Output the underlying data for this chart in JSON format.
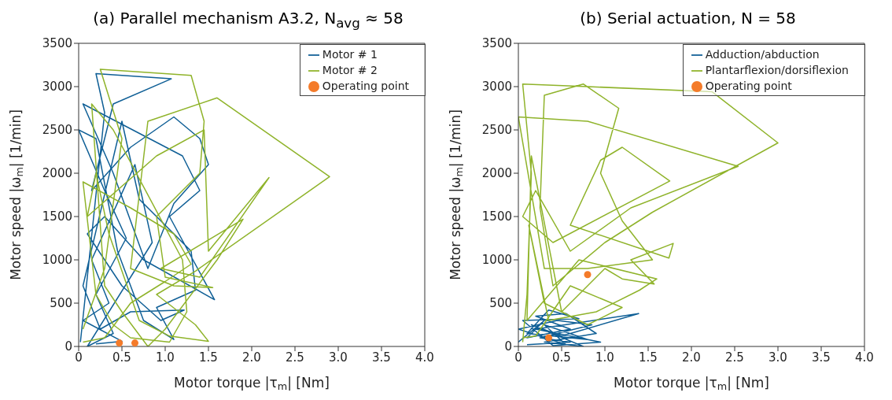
{
  "chart_data": [
    {
      "type": "line",
      "title": "(a) Parallel mechanism A3.2, N$_{avg}$ ≈ 58",
      "xlabel": "Motor torque |τ$_{m}$| [Nm]",
      "ylabel": "Motor speed |ω$_{m}$| [1/min]",
      "xlim": [
        0,
        4
      ],
      "ylim": [
        0,
        3500
      ],
      "xticks": [
        0,
        0.5,
        {
          "value": 1,
          "label": "1.0"
        },
        1.5,
        {
          "value": 2,
          "label": "2.0"
        },
        2.5,
        {
          "value": 3,
          "label": "3.0"
        },
        3.5,
        {
          "value": 4,
          "label": "4.0"
        }
      ],
      "yticks": [
        0,
        500,
        1000,
        1500,
        2000,
        2500,
        3000,
        3500
      ],
      "legend": "top right",
      "series": [
        {
          "name": "Motor # 1",
          "color": "#0f5f96",
          "x": [
            0.02,
            0.1,
            0.3,
            0.2,
            1.07,
            0.4,
            0.15,
            0.6,
            1.1,
            1.4,
            1.5,
            1.1,
            0.8,
            0.4,
            0.05,
            1.2,
            1.4,
            1.05,
            1.57,
            0.75,
            0.3,
            0.1,
            0.5,
            0.95,
            1.22,
            0.6,
            0.25,
            0.05,
            0.5,
            0.7,
            1.3,
            1.35,
            0.9,
            1.1,
            0.75,
            0.45,
            0.2,
            0,
            0.3,
            0.55,
            0.2,
            0.4,
            0.1,
            0.85,
            0.65,
            0.15,
            0.35,
            0.05,
            0.5,
            0.2
          ],
          "values": [
            50,
            800,
            2700,
            3150,
            3090,
            2800,
            1800,
            2300,
            2650,
            2400,
            2100,
            1650,
            900,
            2000,
            2800,
            2200,
            1800,
            1500,
            540,
            1000,
            1500,
            1300,
            700,
            300,
            420,
            400,
            200,
            700,
            2600,
            1700,
            1100,
            650,
            450,
            80,
            300,
            1100,
            2400,
            2500,
            1800,
            1250,
            600,
            150,
            0,
            1200,
            2100,
            1000,
            500,
            300,
            60,
            30
          ]
        },
        {
          "name": "Motor # 2",
          "color": "#8fb32a",
          "x": [
            0.05,
            0.3,
            0.5,
            0.25,
            1.3,
            1.45,
            1.4,
            0.9,
            1,
            1.55,
            1.1,
            0.6,
            0.8,
            1.6,
            2.9,
            1.35,
            0.9,
            1.35,
            1.5,
            1.05,
            0.7,
            0.35,
            0.2,
            0.1,
            0.9,
            1.45,
            1.5,
            2.2,
            1.4,
            0.95,
            1.9,
            1.6,
            1,
            0.8,
            0.5,
            0.3,
            0.15,
            0.4,
            1.2,
            1.25,
            1.05,
            0.6,
            0.4,
            0.2,
            0.05,
            0.6,
            1.1,
            1.3,
            1,
            0.6,
            0.3,
            0.05
          ],
          "values": [
            200,
            900,
            2400,
            3200,
            3130,
            2600,
            2000,
            1500,
            800,
            680,
            700,
            900,
            2600,
            2870,
            1960,
            870,
            600,
            250,
            60,
            120,
            300,
            1300,
            2000,
            1500,
            2200,
            2500,
            1100,
            1950,
            800,
            900,
            1470,
            1000,
            200,
            0,
            400,
            700,
            2800,
            2500,
            1000,
            400,
            50,
            100,
            250,
            600,
            1900,
            1600,
            1300,
            950,
            750,
            500,
            100,
            50
          ]
        },
        {
          "name": "Operating point",
          "type": "scatter",
          "marker": "circle",
          "color": "#f47b2a",
          "x": [
            0.47,
            0.65
          ],
          "values": [
            40,
            40
          ]
        }
      ]
    },
    {
      "type": "line",
      "title": "(b) Serial actuation, N = 58",
      "xlabel": "Motor torque |τ$_{m}$| [Nm]",
      "ylabel": "Motor speed |ω$_{m}$| [1/min]",
      "xlim": [
        0,
        4
      ],
      "ylim": [
        0,
        3500
      ],
      "xticks": [
        0,
        0.5,
        {
          "value": 1,
          "label": "1.0"
        },
        1.5,
        {
          "value": 2,
          "label": "2.0"
        },
        2.5,
        {
          "value": 3,
          "label": "3.0"
        },
        3.5,
        {
          "value": 4,
          "label": "4.0"
        }
      ],
      "yticks": [
        0,
        500,
        1000,
        1500,
        2000,
        2500,
        3000,
        3500
      ],
      "legend": "top right",
      "series": [
        {
          "name": "Adduction/abduction",
          "color": "#0f5f96",
          "x": [
            0,
            0.3,
            0.1,
            0.6,
            0.2,
            0.55,
            0.9,
            0.3,
            0.75,
            0.15,
            0.5,
            1.39,
            0.6,
            0.2,
            0.95,
            0.4,
            0.05,
            0.7,
            0.35,
            0.1,
            0.8,
            0.3,
            0.55,
            0,
            0.45,
            0.85,
            0.25,
            0.6,
            0.1
          ],
          "values": [
            50,
            300,
            100,
            200,
            350,
            380,
            150,
            50,
            0,
            250,
            120,
            380,
            260,
            200,
            50,
            10,
            300,
            320,
            420,
            150,
            80,
            250,
            20,
            200,
            300,
            250,
            100,
            50,
            20
          ]
        },
        {
          "name": "Plantarflexion/dorsiflexion",
          "color": "#8fb32a",
          "x": [
            0.05,
            0.1,
            0.15,
            0.05,
            0.8,
            2.24,
            3,
            1.55,
            1,
            0.4,
            0.25,
            0.3,
            0.75,
            1.16,
            0.95,
            1.2,
            1.55,
            0.8,
            0.3,
            0,
            0.8,
            2.54,
            1.3,
            0.6,
            0.2,
            0.05,
            0.4,
            1.75,
            1.2,
            0.95,
            0.6,
            1.74,
            1.79,
            1.3,
            1.57,
            1.2,
            1,
            0.5,
            0.15,
            0.1,
            0.7,
            1.6,
            1.4,
            0.9,
            0.35,
            0.12,
            0.3,
            0.8,
            1.2,
            0.6,
            0.2,
            0.05
          ],
          "values": [
            50,
            600,
            2000,
            3030,
            3000,
            2940,
            2350,
            1550,
            1200,
            700,
            1600,
            2900,
            3030,
            2750,
            2000,
            1450,
            1000,
            900,
            900,
            2650,
            2600,
            2080,
            1600,
            1100,
            1800,
            1500,
            1200,
            1910,
            2300,
            2150,
            1400,
            1020,
            1190,
            1000,
            720,
            780,
            900,
            400,
            2200,
            300,
            1000,
            780,
            650,
            400,
            300,
            1400,
            500,
            250,
            450,
            700,
            120,
            100
          ]
        },
        {
          "name": "Operating point",
          "type": "scatter",
          "marker": "circle",
          "color": "#f47b2a",
          "x": [
            0.35,
            0.8
          ],
          "values": [
            100,
            830
          ]
        }
      ]
    }
  ]
}
